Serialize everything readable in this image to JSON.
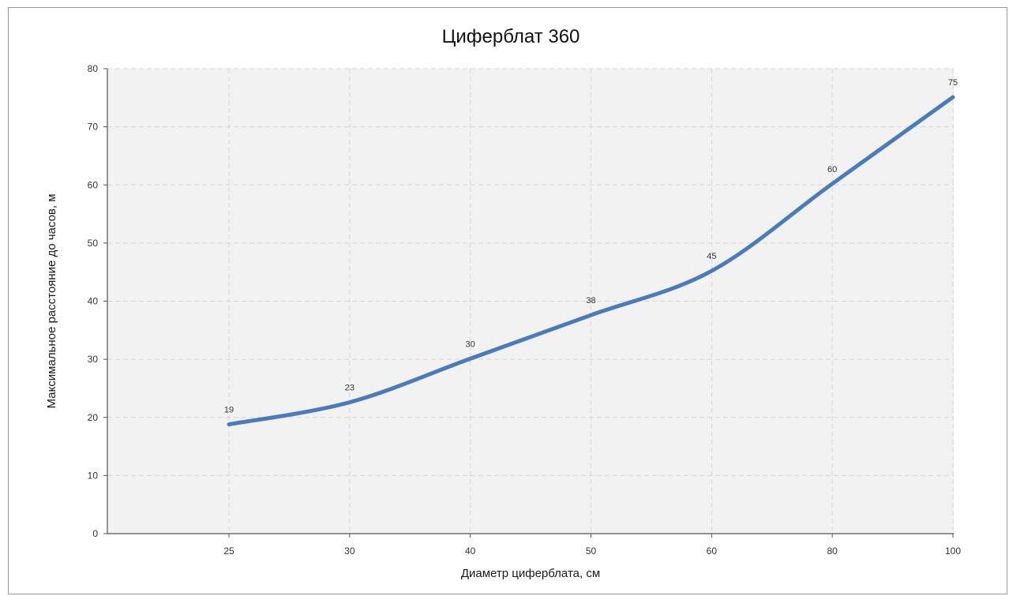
{
  "chart_data": {
    "type": "line",
    "title": "Циферблат 360",
    "xlabel": "Диаметр циферблата, см",
    "ylabel": "Максимальное расстояние до часов, м",
    "categories": [
      "25",
      "30",
      "40",
      "50",
      "60",
      "80",
      "100"
    ],
    "series": [
      {
        "values": [
          18.8,
          22.6,
          30.1,
          37.6,
          45.2,
          60.2,
          75.1
        ],
        "data_labels": [
          "19",
          "23",
          "30",
          "38",
          "45",
          "60",
          "75"
        ],
        "color": "#4a7bbd"
      }
    ],
    "ylim": [
      0,
      80
    ],
    "yticks": [
      "0",
      "10",
      "20",
      "30",
      "40",
      "50",
      "60",
      "70",
      "80"
    ],
    "grid": true,
    "legend": "none",
    "plot_background": "#f2f2f2"
  }
}
